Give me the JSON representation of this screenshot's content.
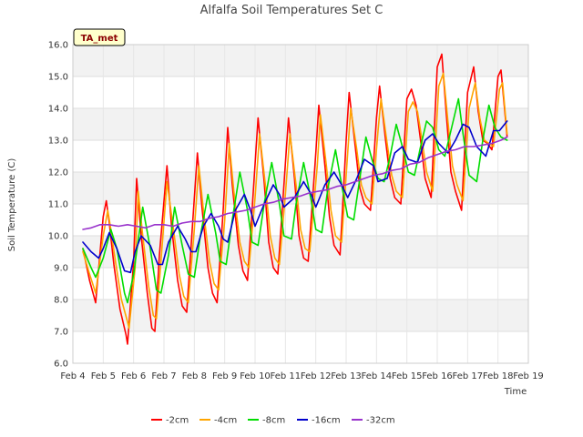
{
  "chart_data": {
    "type": "line",
    "title": "Alfalfa Soil Temperatures Set C",
    "xlabel": "Time",
    "ylabel": "Soil Temperature (C)",
    "ylim": [
      6.0,
      16.0
    ],
    "yticks": [
      "6.0",
      "7.0",
      "8.0",
      "9.0",
      "10.0",
      "11.0",
      "12.0",
      "13.0",
      "14.0",
      "15.0",
      "16.0"
    ],
    "xlim": [
      4,
      19
    ],
    "xticks": [
      "Feb 4",
      "Feb 5",
      "Feb 6",
      "Feb 7",
      "Feb 8",
      "Feb 9",
      "Feb 10",
      "Feb 11",
      "Feb 12",
      "Feb 13",
      "Feb 14",
      "Feb 15",
      "Feb 16",
      "Feb 17",
      "Feb 18",
      "Feb 19"
    ],
    "grid": true,
    "legend_position": "bottom",
    "annotation": "TA_met",
    "series": [
      {
        "name": "-2cm",
        "color": "#ff0000",
        "x": [
          4.33,
          4.55,
          4.75,
          5.0,
          5.1,
          5.2,
          5.35,
          5.55,
          5.75,
          5.8,
          6.0,
          6.1,
          6.25,
          6.45,
          6.6,
          6.7,
          6.85,
          7.1,
          7.25,
          7.45,
          7.6,
          7.75,
          7.95,
          8.1,
          8.25,
          8.45,
          8.6,
          8.75,
          8.95,
          9.1,
          9.25,
          9.45,
          9.6,
          9.75,
          9.95,
          10.1,
          10.3,
          10.45,
          10.6,
          10.75,
          10.95,
          11.1,
          11.3,
          11.45,
          11.6,
          11.75,
          12.0,
          12.1,
          12.3,
          12.45,
          12.6,
          12.8,
          13.0,
          13.1,
          13.3,
          13.45,
          13.6,
          13.8,
          14.0,
          14.1,
          14.3,
          14.45,
          14.6,
          14.8,
          15.0,
          15.15,
          15.3,
          15.45,
          15.6,
          15.8,
          16.0,
          16.15,
          16.3,
          16.45,
          16.6,
          16.8,
          17.0,
          17.2,
          17.35,
          17.5,
          17.65,
          17.8,
          18.0,
          18.1,
          18.3
        ],
        "y": [
          9.6,
          8.6,
          7.9,
          10.6,
          11.1,
          10.4,
          9.1,
          7.7,
          6.9,
          6.6,
          9.2,
          11.8,
          10.0,
          8.2,
          7.1,
          7.0,
          9.4,
          12.2,
          10.3,
          8.6,
          7.8,
          7.6,
          10.5,
          12.6,
          10.9,
          9.0,
          8.2,
          7.9,
          10.8,
          13.4,
          11.6,
          9.7,
          8.9,
          8.6,
          11.5,
          13.7,
          11.7,
          9.8,
          9.0,
          8.8,
          11.6,
          13.7,
          11.8,
          10.0,
          9.3,
          9.2,
          12.6,
          14.1,
          12.2,
          10.6,
          9.7,
          9.4,
          13.0,
          14.5,
          12.8,
          11.5,
          11.0,
          10.8,
          13.7,
          14.7,
          13.0,
          11.8,
          11.2,
          11.0,
          14.3,
          14.6,
          14.1,
          13.0,
          11.8,
          11.2,
          15.3,
          15.7,
          13.8,
          12.0,
          11.4,
          10.8,
          14.5,
          15.3,
          13.9,
          13.0,
          12.9,
          12.7,
          15.0,
          15.2,
          13.1
        ]
      },
      {
        "name": "-4cm",
        "color": "#ffa500",
        "x": [
          4.33,
          4.55,
          4.75,
          5.0,
          5.15,
          5.25,
          5.4,
          5.6,
          5.8,
          5.85,
          6.05,
          6.15,
          6.3,
          6.5,
          6.65,
          6.75,
          6.9,
          7.1,
          7.3,
          7.5,
          7.65,
          7.8,
          8.0,
          8.15,
          8.3,
          8.5,
          8.65,
          8.8,
          9.0,
          9.15,
          9.3,
          9.5,
          9.65,
          9.8,
          10.0,
          10.15,
          10.35,
          10.5,
          10.65,
          10.8,
          11.0,
          11.15,
          11.35,
          11.5,
          11.65,
          11.8,
          12.05,
          12.15,
          12.35,
          12.5,
          12.65,
          12.85,
          13.05,
          13.15,
          13.35,
          13.5,
          13.65,
          13.85,
          14.05,
          14.15,
          14.35,
          14.5,
          14.65,
          14.85,
          15.05,
          15.2,
          15.35,
          15.5,
          15.65,
          15.85,
          16.05,
          16.2,
          16.35,
          16.5,
          16.65,
          16.85,
          17.05,
          17.25,
          17.4,
          17.55,
          17.7,
          17.85,
          18.05,
          18.15,
          18.3
        ],
        "y": [
          9.5,
          8.8,
          8.2,
          10.0,
          10.8,
          10.2,
          9.2,
          8.0,
          7.3,
          7.1,
          9.0,
          11.4,
          10.0,
          8.4,
          7.5,
          7.4,
          9.2,
          11.7,
          10.3,
          8.8,
          8.1,
          7.9,
          10.2,
          12.2,
          10.8,
          9.2,
          8.5,
          8.3,
          10.5,
          12.9,
          11.4,
          9.8,
          9.2,
          9.0,
          11.2,
          13.2,
          11.5,
          10.0,
          9.3,
          9.1,
          11.3,
          13.2,
          11.6,
          10.2,
          9.6,
          9.5,
          12.2,
          13.8,
          12.2,
          10.8,
          10.0,
          9.8,
          12.6,
          14.0,
          12.7,
          11.6,
          11.2,
          11.0,
          13.3,
          14.3,
          12.9,
          11.9,
          11.4,
          11.2,
          13.9,
          14.2,
          13.9,
          13.0,
          12.0,
          11.4,
          14.7,
          15.1,
          13.6,
          12.2,
          11.6,
          11.1,
          14.0,
          14.8,
          13.7,
          13.0,
          12.9,
          12.8,
          14.6,
          14.8,
          13.2
        ]
      },
      {
        "name": "-8cm",
        "color": "#00dd00",
        "x": [
          4.33,
          4.6,
          4.75,
          5.0,
          5.25,
          5.45,
          5.7,
          5.8,
          6.0,
          6.3,
          6.55,
          6.75,
          6.9,
          7.15,
          7.35,
          7.6,
          7.8,
          8.0,
          8.2,
          8.45,
          8.7,
          8.85,
          9.05,
          9.25,
          9.5,
          9.75,
          9.9,
          10.1,
          10.3,
          10.55,
          10.8,
          10.95,
          11.2,
          11.35,
          11.6,
          11.85,
          12.0,
          12.2,
          12.4,
          12.65,
          12.85,
          13.05,
          13.25,
          13.45,
          13.65,
          13.85,
          14.05,
          14.25,
          14.45,
          14.65,
          14.85,
          15.05,
          15.25,
          15.45,
          15.65,
          15.85,
          16.05,
          16.25,
          16.45,
          16.7,
          16.85,
          17.05,
          17.3,
          17.5,
          17.7,
          17.9,
          18.1,
          18.3
        ],
        "y": [
          9.6,
          9.0,
          8.7,
          9.3,
          10.2,
          9.6,
          8.2,
          7.9,
          8.8,
          10.9,
          9.6,
          8.3,
          8.2,
          9.4,
          10.9,
          9.7,
          8.8,
          8.7,
          10.0,
          11.3,
          10.1,
          9.2,
          9.1,
          10.5,
          12.0,
          10.8,
          9.8,
          9.7,
          11.0,
          12.3,
          11.0,
          10.0,
          9.9,
          11.0,
          12.3,
          11.1,
          10.2,
          10.1,
          11.5,
          12.7,
          11.6,
          10.6,
          10.5,
          11.8,
          13.1,
          12.4,
          11.8,
          11.7,
          12.5,
          13.5,
          12.8,
          12.0,
          11.9,
          12.8,
          13.6,
          13.4,
          12.7,
          12.5,
          13.3,
          14.3,
          13.2,
          11.9,
          11.7,
          13.0,
          14.1,
          13.4,
          13.1,
          13.0
        ]
      },
      {
        "name": "-16cm",
        "color": "#0000cc",
        "x": [
          4.33,
          4.6,
          4.85,
          5.0,
          5.2,
          5.45,
          5.7,
          5.9,
          6.05,
          6.25,
          6.55,
          6.8,
          6.95,
          7.15,
          7.45,
          7.7,
          7.9,
          8.05,
          8.3,
          8.55,
          8.8,
          8.95,
          9.1,
          9.35,
          9.65,
          9.85,
          10.0,
          10.3,
          10.6,
          10.8,
          10.95,
          11.3,
          11.6,
          11.85,
          12.0,
          12.3,
          12.6,
          12.85,
          13.05,
          13.35,
          13.6,
          13.9,
          14.05,
          14.35,
          14.6,
          14.85,
          15.05,
          15.35,
          15.6,
          15.85,
          16.05,
          16.35,
          16.6,
          16.85,
          17.05,
          17.3,
          17.6,
          17.85,
          18.05,
          18.3
        ],
        "y": [
          9.8,
          9.5,
          9.3,
          9.6,
          10.1,
          9.6,
          8.9,
          8.85,
          9.5,
          10.0,
          9.7,
          9.1,
          9.1,
          9.8,
          10.3,
          9.9,
          9.5,
          9.5,
          10.3,
          10.7,
          10.3,
          9.9,
          9.8,
          10.8,
          11.3,
          10.8,
          10.3,
          11.0,
          11.6,
          11.3,
          10.9,
          11.2,
          11.7,
          11.3,
          10.9,
          11.6,
          12.0,
          11.6,
          11.2,
          11.8,
          12.4,
          12.2,
          11.7,
          11.8,
          12.6,
          12.8,
          12.4,
          12.3,
          13.0,
          13.2,
          12.9,
          12.6,
          13.0,
          13.5,
          13.4,
          12.8,
          12.5,
          13.3,
          13.3,
          13.6
        ]
      },
      {
        "name": "-32cm",
        "color": "#9933cc",
        "x": [
          4.33,
          4.6,
          4.9,
          5.2,
          5.5,
          5.8,
          6.1,
          6.4,
          6.7,
          7.0,
          7.3,
          7.6,
          7.9,
          8.2,
          8.5,
          8.8,
          9.1,
          9.4,
          9.7,
          10.0,
          10.3,
          10.6,
          10.9,
          11.2,
          11.5,
          11.8,
          12.1,
          12.4,
          12.7,
          13.0,
          13.3,
          13.6,
          13.9,
          14.2,
          14.5,
          14.8,
          15.1,
          15.4,
          15.7,
          16.0,
          16.3,
          16.6,
          16.9,
          17.2,
          17.5,
          17.8,
          18.1,
          18.3
        ],
        "y": [
          10.2,
          10.25,
          10.35,
          10.35,
          10.3,
          10.35,
          10.3,
          10.25,
          10.35,
          10.35,
          10.3,
          10.4,
          10.45,
          10.45,
          10.55,
          10.6,
          10.7,
          10.75,
          10.8,
          10.9,
          11.0,
          11.05,
          11.15,
          11.2,
          11.25,
          11.35,
          11.4,
          11.45,
          11.55,
          11.6,
          11.7,
          11.8,
          11.9,
          11.95,
          12.05,
          12.1,
          12.25,
          12.3,
          12.45,
          12.55,
          12.65,
          12.7,
          12.8,
          12.8,
          12.85,
          12.9,
          13.0,
          13.1
        ]
      }
    ]
  }
}
